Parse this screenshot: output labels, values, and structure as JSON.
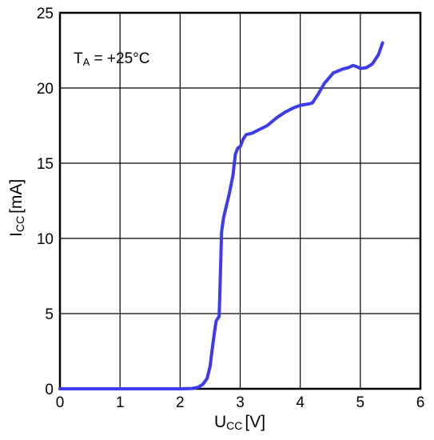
{
  "chart_data": {
    "type": "line",
    "xlim": [
      0,
      6
    ],
    "ylim": [
      0,
      25
    ],
    "x_ticks": [
      0,
      1,
      2,
      3,
      4,
      5,
      6
    ],
    "y_ticks": [
      0,
      5,
      10,
      15,
      20,
      25
    ],
    "x_tick_labels": [
      "0",
      "1",
      "2",
      "3",
      "4",
      "5",
      "6"
    ],
    "y_tick_labels": [
      "0",
      "5",
      "10",
      "15",
      "20",
      "25"
    ],
    "xlabel": {
      "main": "U",
      "sub": "CC",
      "unit": "[V]"
    },
    "ylabel": {
      "main": "I",
      "sub": "CC",
      "unit": "[mA]"
    },
    "annotation": {
      "main": "T",
      "sub": "A",
      "rest": " = +25°C"
    },
    "grid": true,
    "line_color": "#3b3bef",
    "series": [
      {
        "x": [
          0,
          0.5,
          1.0,
          1.5,
          2.0,
          2.2,
          2.3,
          2.38,
          2.45,
          2.5,
          2.53,
          2.57,
          2.6,
          2.63,
          2.65,
          2.67,
          2.69,
          2.72,
          2.76,
          2.82,
          2.88,
          2.92,
          2.96,
          3.0,
          3.05,
          3.1,
          3.2,
          3.3,
          3.45,
          3.6,
          3.75,
          3.9,
          4.0,
          4.15,
          4.2,
          4.3,
          4.4,
          4.55,
          4.7,
          4.8,
          4.88,
          4.95,
          5.0,
          5.1,
          5.2,
          5.3,
          5.37
        ],
        "y": [
          0,
          0,
          0,
          0,
          0,
          0.02,
          0.1,
          0.3,
          0.7,
          1.5,
          2.5,
          3.7,
          4.5,
          4.7,
          4.8,
          7.5,
          10.4,
          11.3,
          12.0,
          13.0,
          14.2,
          15.6,
          16.0,
          16.1,
          16.6,
          16.9,
          17.0,
          17.2,
          17.5,
          18.0,
          18.4,
          18.7,
          18.85,
          18.95,
          19.0,
          19.6,
          20.3,
          21.0,
          21.25,
          21.35,
          21.5,
          21.4,
          21.3,
          21.35,
          21.6,
          22.2,
          23.0
        ]
      }
    ]
  }
}
